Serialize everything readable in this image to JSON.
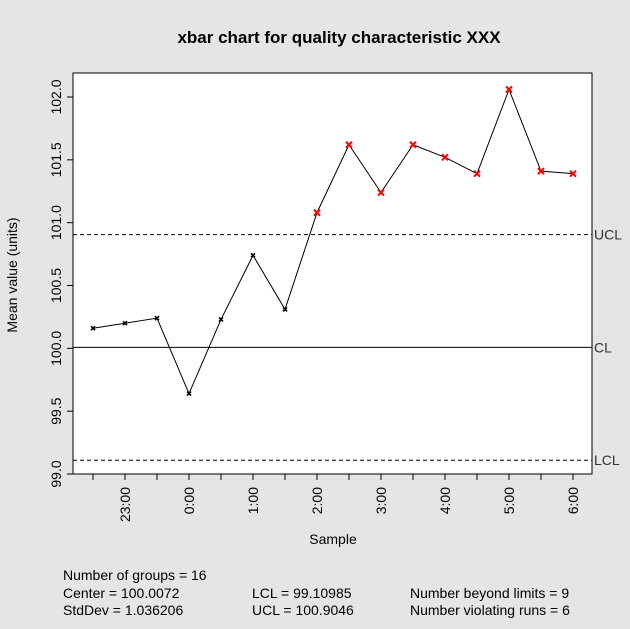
{
  "chart_data": {
    "type": "line",
    "title": "xbar chart for quality characteristic XXX",
    "xlabel": "Sample",
    "ylabel": "Mean value (units)",
    "ylim": [
      99.0,
      102.0
    ],
    "y_ticks": [
      "99.0",
      "99.5",
      "100.0",
      "100.5",
      "101.0",
      "101.5",
      "102.0"
    ],
    "x_tick_labels": [
      "23:00",
      "0:00",
      "1:00",
      "2:00",
      "3:00",
      "4:00",
      "5:00",
      "6:00"
    ],
    "series": [
      {
        "values": [
          100.16,
          100.2,
          100.24,
          99.64,
          100.23,
          100.74,
          100.31,
          101.08,
          101.62,
          101.24,
          101.62,
          101.52,
          101.39,
          102.06,
          101.41,
          101.39
        ],
        "out_of_control": [
          false,
          false,
          false,
          false,
          false,
          false,
          false,
          true,
          true,
          true,
          true,
          true,
          true,
          true,
          true,
          true
        ]
      }
    ],
    "reference_lines": [
      {
        "label": "UCL",
        "value": 100.9046,
        "style": "dashed"
      },
      {
        "label": "CL",
        "value": 100.0072,
        "style": "solid"
      },
      {
        "label": "LCL",
        "value": 99.10985,
        "style": "dashed"
      }
    ],
    "colors": {
      "in_control": "#000000",
      "out_of_control": "#ff0000",
      "background": "#e5e5e5",
      "plot_background": "#ffffff"
    }
  },
  "stats": {
    "groups": "Number of groups = 16",
    "center": "Center = 100.0072",
    "stddev": "StdDev = 1.036206",
    "lcl": "LCL = 99.10985",
    "ucl": "UCL = 100.9046",
    "beyond": "Number beyond limits = 9",
    "violating": "Number violating runs = 6"
  }
}
